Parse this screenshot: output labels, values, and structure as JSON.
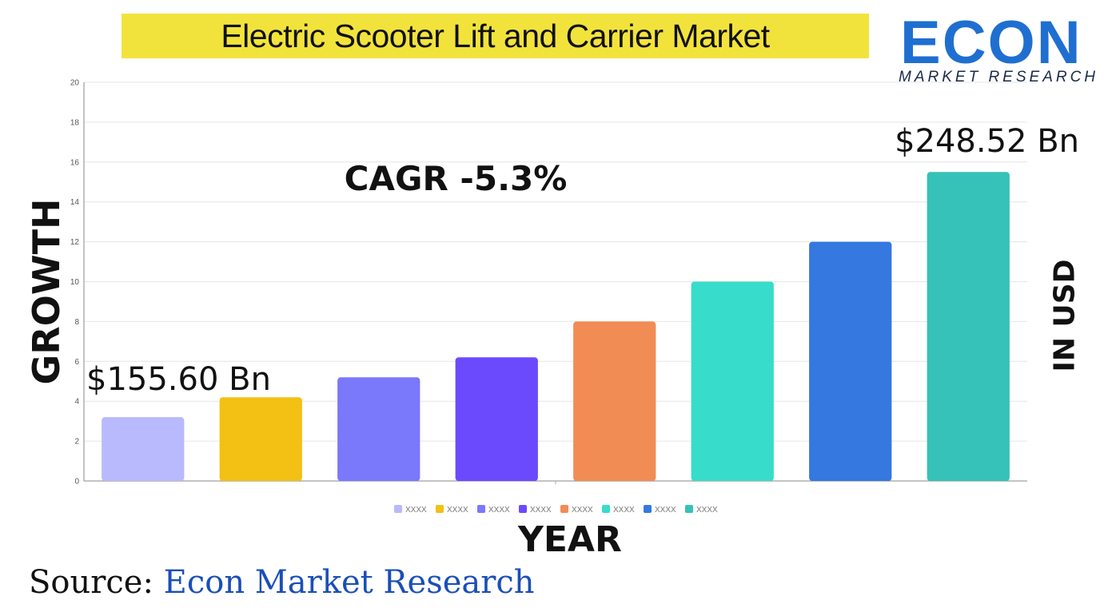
{
  "title": "Electric Scooter Lift and Carrier Market",
  "logo": {
    "word": "ECON",
    "sub": "MARKET RESEARCH"
  },
  "y_axis_title": "GROWTH",
  "right_axis_title": "IN USD",
  "x_axis_title": "YEAR",
  "source": {
    "prefix": "Source:",
    "name": " Econ Market Research"
  },
  "annotations": {
    "start_value": "$155.60 Bn",
    "end_value": "$248.52 Bn",
    "cagr": "CAGR -5.3%"
  },
  "colors": {
    "title_banner": "#f2e33c",
    "logo_blue": "#1f6fd1",
    "source_blue": "#1a4fb8"
  },
  "chart_data": {
    "type": "bar",
    "categories": [
      "XXXX",
      "XXXX",
      "XXXX",
      "XXXX",
      "XXXX",
      "XXXX",
      "XXXX",
      "XXXX"
    ],
    "values": [
      3.2,
      4.2,
      5.2,
      6.2,
      8.0,
      10.0,
      12.0,
      15.5
    ],
    "colors": [
      "#b9b9fd",
      "#f2c114",
      "#7a78fb",
      "#6b4afe",
      "#f28c55",
      "#37dccb",
      "#3478e0",
      "#36c1b9"
    ],
    "yticks": [
      0,
      2,
      4,
      6,
      8,
      10,
      12,
      14,
      16,
      18,
      20
    ],
    "ylim": [
      0,
      20
    ],
    "legend": [
      "XXXX",
      "XXXX",
      "XXXX",
      "XXXX",
      "XXXX",
      "XXXX",
      "XXXX",
      "XXXX"
    ],
    "legend_position": "bottom",
    "grid": true
  }
}
